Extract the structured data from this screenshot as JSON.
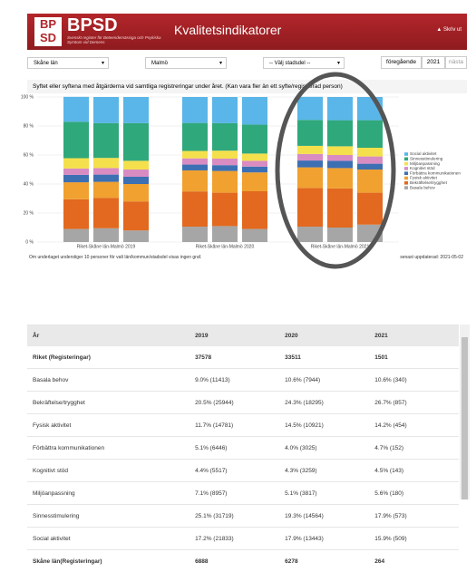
{
  "header": {
    "logo": "BP SD",
    "brand": "BPSD",
    "brand_subtitle": "Svenskt register för Beteendemässiga och Psykiska Symtom vid Demens",
    "title": "Kvalitetsindikatorer",
    "print": "Skriv ut"
  },
  "controls": {
    "region": "Skåne län",
    "municipality": "Malmö",
    "district": "-- Välj stadsdel --",
    "previous": "föregående",
    "year": "2021",
    "next": "nästa"
  },
  "description": "Syftet eller syftena med åtgärderna vid samtliga registreringar under året. (Kan vara fler än ett syfte/registrerad person)",
  "chart_data": {
    "type": "bar",
    "stacked": true,
    "categories": [
      null,
      "Riket-Skåne län-Malmö 2019",
      null,
      null,
      "Riket-Skåne län-Malmö 2020",
      null,
      null,
      "Riket-Skåne län-Malmö 2021",
      null
    ],
    "ylim": [
      0,
      100
    ],
    "yticks": [
      {
        "value": 0,
        "label": "0 %"
      },
      {
        "value": 20,
        "label": "20 %"
      },
      {
        "value": 40,
        "label": "40 %"
      },
      {
        "value": 60,
        "label": "60 %"
      },
      {
        "value": 80,
        "label": "80 %"
      },
      {
        "value": 100,
        "label": "100 %"
      }
    ],
    "grid": true,
    "legend": "right",
    "series": [
      {
        "name": "Basala behov",
        "color": "#a6a6a6",
        "values": [
          9.0,
          9.5,
          8,
          10.6,
          11,
          9,
          10.6,
          10,
          12
        ]
      },
      {
        "name": "Bekräftelse/trygghet",
        "color": "#e2691f",
        "values": [
          20.5,
          21,
          20,
          24.3,
          23,
          26,
          26.7,
          27,
          22
        ]
      },
      {
        "name": "Fysisk aktivitet",
        "color": "#f0a130",
        "values": [
          11.7,
          11,
          12,
          14.5,
          15,
          13,
          14.2,
          14,
          16
        ]
      },
      {
        "name": "Förbättra kommunikationen",
        "color": "#3d6fb3",
        "values": [
          5.1,
          5,
          5,
          4.0,
          4,
          4,
          4.7,
          5,
          4
        ]
      },
      {
        "name": "Kognitivt stöd",
        "color": "#d88cc2",
        "values": [
          4.4,
          4.5,
          5,
          4.3,
          4.5,
          4,
          4.5,
          4,
          5
        ]
      },
      {
        "name": "Miljöanpassning",
        "color": "#f4e04d",
        "values": [
          7.1,
          7,
          6,
          5.1,
          5.5,
          5,
          5.6,
          6,
          6
        ]
      },
      {
        "name": "Sinnesstimulering",
        "color": "#2fa87b",
        "values": [
          25.1,
          24,
          26,
          19.3,
          19,
          20,
          17.9,
          18,
          19
        ]
      },
      {
        "name": "Social aktivitet",
        "color": "#5ab5e8",
        "values": [
          17.2,
          18,
          18,
          17.9,
          18,
          19,
          15.9,
          16,
          16
        ]
      }
    ]
  },
  "note": "Om underlaget understiger 10 personer för valt län/kommun/stadsdel visas ingen graf.",
  "updated": "senast uppdaterad: 2021-05-02",
  "table": {
    "header": [
      "År",
      "2019",
      "2020",
      "2021"
    ],
    "rows": [
      [
        "Riket (Registeringar)",
        "37578",
        "33511",
        "1501"
      ],
      [
        "Basala behov",
        "9.0% (11413)",
        "10.6% (7944)",
        "10.6% (340)"
      ],
      [
        "Bekräftelse/trygghet",
        "20.5% (25944)",
        "24.3% (18295)",
        "26.7% (857)"
      ],
      [
        "Fysisk aktivitet",
        "11.7% (14781)",
        "14.5% (10921)",
        "14.2% (454)"
      ],
      [
        "Förbättra kommunikationen",
        "5.1% (6446)",
        "4.0% (3025)",
        "4.7% (152)"
      ],
      [
        "Kognitivt stöd",
        "4.4% (5517)",
        "4.3% (3259)",
        "4.5% (143)"
      ],
      [
        "Miljöanpassning",
        "7.1% (8957)",
        "5.1% (3817)",
        "5.6% (180)"
      ],
      [
        "Sinnesstimulering",
        "25.1% (31719)",
        "19.3% (14564)",
        "17.9% (573)"
      ],
      [
        "Social aktivitet",
        "17.2% (21833)",
        "17.9% (13443)",
        "15.9% (509)"
      ],
      [
        "Skåne län(Registeringar)",
        "6888",
        "6278",
        "264"
      ]
    ],
    "bold_rows": [
      0,
      9
    ]
  }
}
